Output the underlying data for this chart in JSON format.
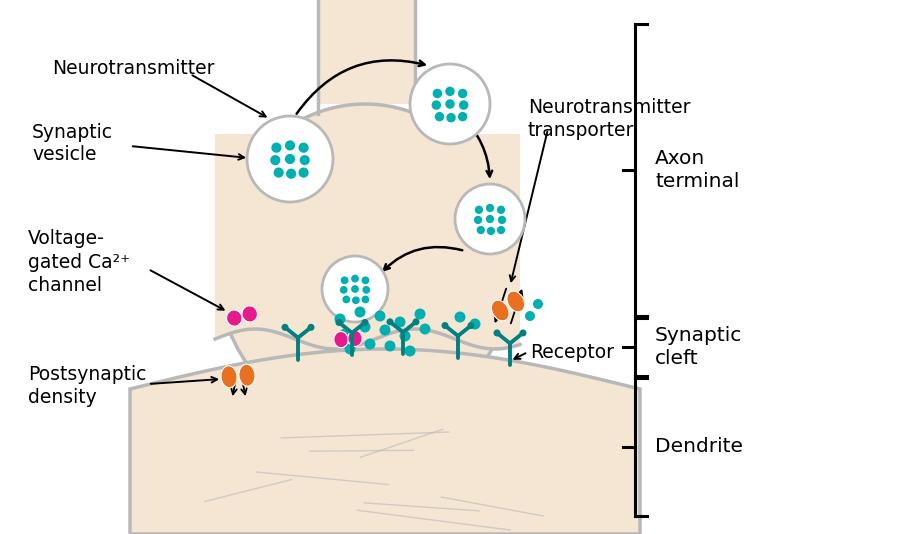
{
  "background_color": "#ffffff",
  "axon_terminal_color": "#f5e6d3",
  "axon_border_color": "#b8b8b8",
  "dendrite_color": "#f5e6d3",
  "dendrite_border_color": "#b8b8b8",
  "vesicle_fill": "#ffffff",
  "vesicle_border": "#b8b8b8",
  "dot_color": "#00b0b0",
  "ca_channel_color": "#e8198c",
  "transporter_color": "#e87020",
  "postsynaptic_receptor_color": "#008080",
  "labels": {
    "neurotransmitter": "Neurotransmitter",
    "synaptic_vesicle": "Synaptic\nvesicle",
    "voltage_gated": "Voltage-\ngated Ca²⁺\nchannel",
    "postsynaptic_density": "Postsynaptic\ndensity",
    "neurotransmitter_transporter": "Neurotransmitter\ntransporter",
    "receptor": "Receptor",
    "axon_terminal": "Axon\nterminal",
    "synaptic_cleft": "Synaptic\ncleft",
    "dendrite": "Dendrite"
  },
  "label_fontsize": 13.5,
  "bracket_color": "#000000"
}
